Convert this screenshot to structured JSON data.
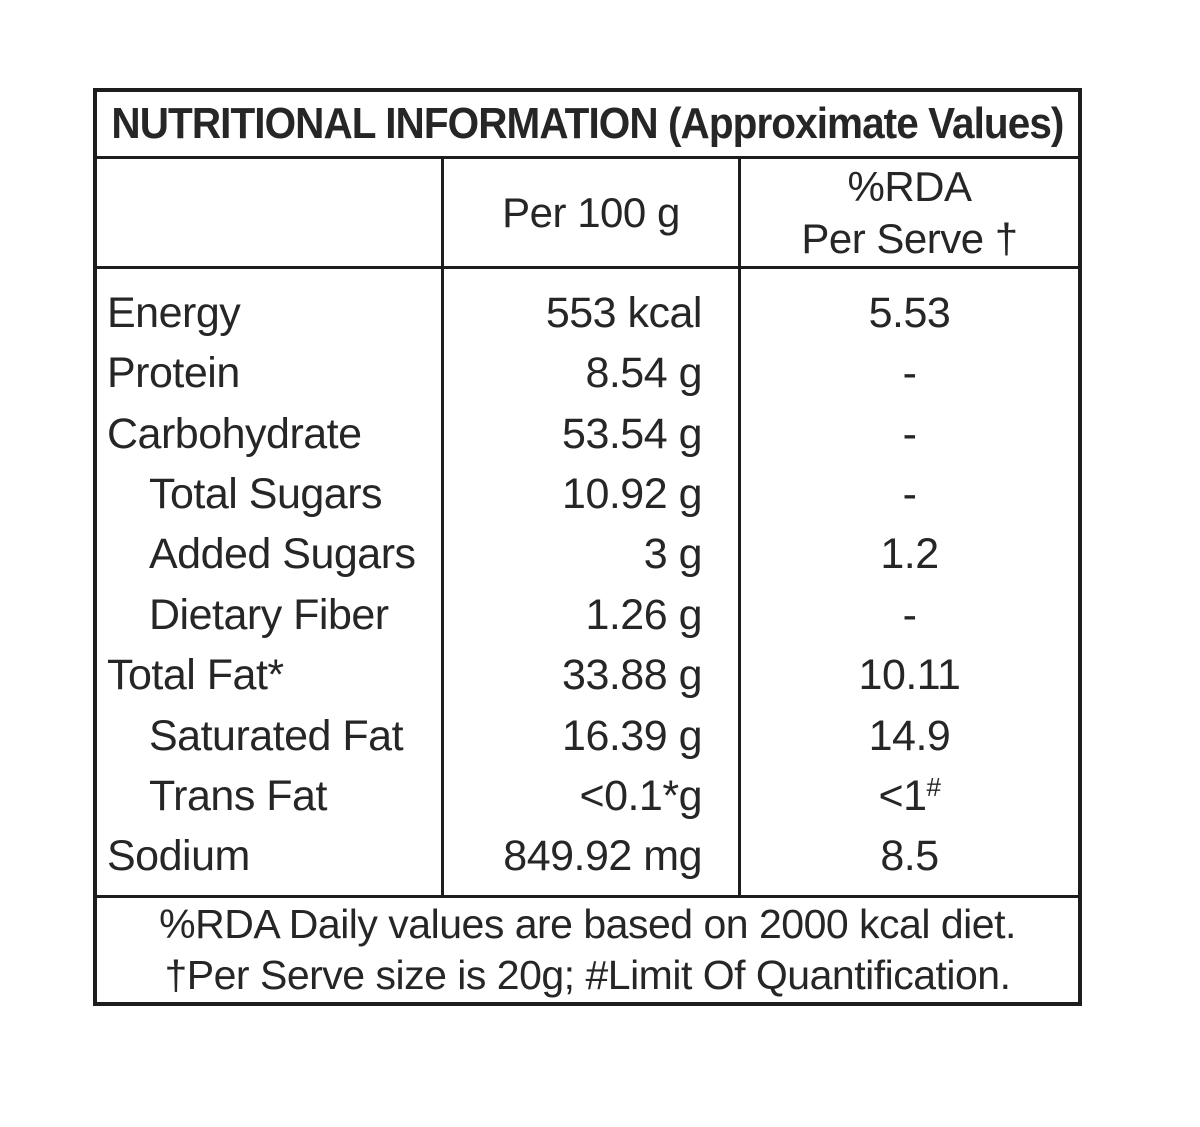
{
  "title": "NUTRITIONAL INFORMATION (Approximate Values)",
  "columns": {
    "label_header": "",
    "per_100g_header": "Per 100 g",
    "rda_header_line1": "%RDA",
    "rda_header_line2": "Per Serve †"
  },
  "rows": [
    {
      "label": "Energy",
      "indent": false,
      "per100g": "553 kcal",
      "rda": "5.53",
      "rda_sup": ""
    },
    {
      "label": "Protein",
      "indent": false,
      "per100g": "8.54 g",
      "rda": "-",
      "rda_sup": ""
    },
    {
      "label": "Carbohydrate",
      "indent": false,
      "per100g": "53.54 g",
      "rda": "-",
      "rda_sup": ""
    },
    {
      "label": "Total Sugars",
      "indent": true,
      "per100g": "10.92 g",
      "rda": "-",
      "rda_sup": ""
    },
    {
      "label": "Added Sugars",
      "indent": true,
      "per100g": "3 g",
      "rda": "1.2",
      "rda_sup": ""
    },
    {
      "label": "Dietary Fiber",
      "indent": true,
      "per100g": "1.26 g",
      "rda": "-",
      "rda_sup": ""
    },
    {
      "label": "Total Fat*",
      "indent": false,
      "per100g": "33.88 g",
      "rda": "10.11",
      "rda_sup": ""
    },
    {
      "label": "Saturated Fat",
      "indent": true,
      "per100g": "16.39 g",
      "rda": "14.9",
      "rda_sup": ""
    },
    {
      "label": "Trans Fat",
      "indent": true,
      "per100g": "<0.1*g",
      "rda": "<1",
      "rda_sup": "#"
    },
    {
      "label": "Sodium",
      "indent": false,
      "per100g": "849.92 mg",
      "rda": "8.5",
      "rda_sup": ""
    }
  ],
  "footnote": {
    "line1": "%RDA Daily values are based on 2000 kcal diet.",
    "line2": "†Per Serve size is 20g; #Limit Of Quantification."
  },
  "colors": {
    "border": "#1d1d1d",
    "text": "#262626",
    "background": "#ffffff"
  }
}
